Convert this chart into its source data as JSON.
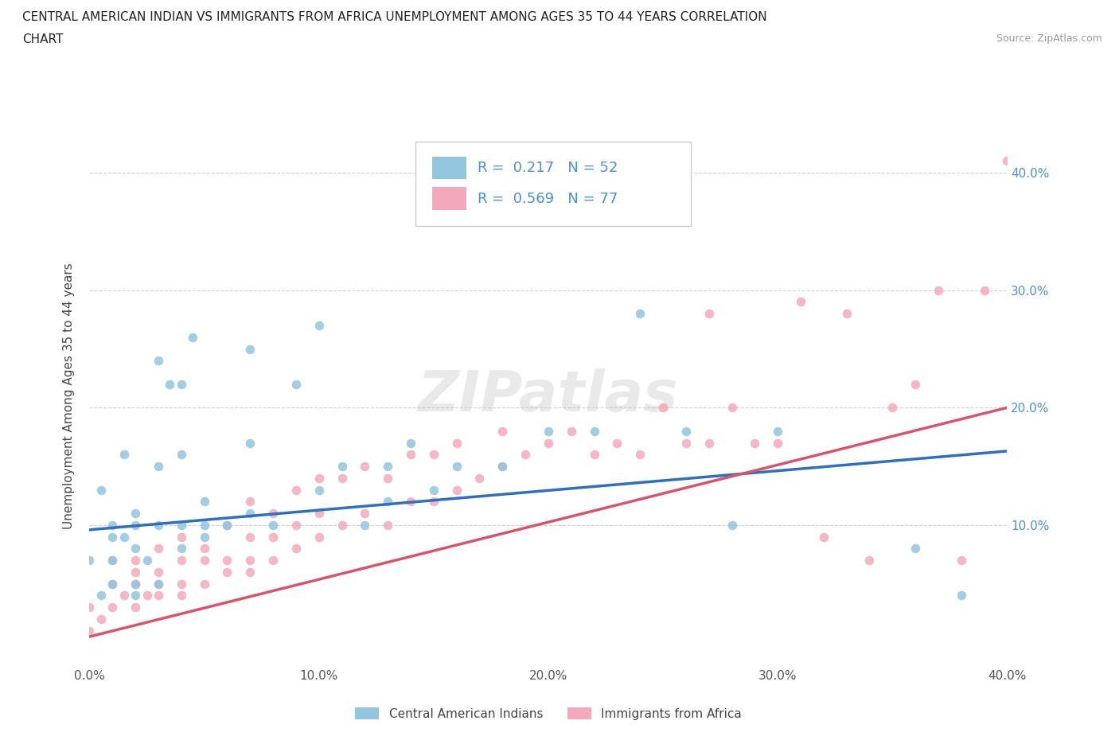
{
  "title_line1": "CENTRAL AMERICAN INDIAN VS IMMIGRANTS FROM AFRICA UNEMPLOYMENT AMONG AGES 35 TO 44 YEARS CORRELATION",
  "title_line2": "CHART",
  "source_text": "Source: ZipAtlas.com",
  "ylabel": "Unemployment Among Ages 35 to 44 years",
  "xlim": [
    0.0,
    0.4
  ],
  "ylim": [
    -0.02,
    0.44
  ],
  "xtick_labels": [
    "0.0%",
    "10.0%",
    "20.0%",
    "30.0%",
    "40.0%"
  ],
  "xtick_vals": [
    0.0,
    0.1,
    0.2,
    0.3,
    0.4
  ],
  "ytick_labels": [
    "10.0%",
    "20.0%",
    "30.0%",
    "40.0%"
  ],
  "ytick_vals": [
    0.1,
    0.2,
    0.3,
    0.4
  ],
  "color_blue": "#92C5DE",
  "color_pink": "#F4A9BB",
  "line_color_blue": "#2E6FBF",
  "line_color_pink": "#D9546A",
  "R_blue": 0.217,
  "N_blue": 52,
  "R_pink": 0.569,
  "N_pink": 77,
  "legend_label_blue": "Central American Indians",
  "legend_label_pink": "Immigrants from Africa",
  "legend_text_color": "#4A90D9",
  "watermark": "ZIPatlas",
  "blue_scatter_x": [
    0.0,
    0.005,
    0.01,
    0.01,
    0.01,
    0.015,
    0.015,
    0.02,
    0.02,
    0.02,
    0.02,
    0.02,
    0.025,
    0.03,
    0.03,
    0.03,
    0.03,
    0.035,
    0.04,
    0.04,
    0.04,
    0.04,
    0.045,
    0.05,
    0.05,
    0.05,
    0.06,
    0.07,
    0.07,
    0.07,
    0.08,
    0.09,
    0.1,
    0.1,
    0.11,
    0.12,
    0.13,
    0.13,
    0.14,
    0.15,
    0.16,
    0.18,
    0.2,
    0.22,
    0.24,
    0.26,
    0.28,
    0.3,
    0.36,
    0.38,
    0.005,
    0.01
  ],
  "blue_scatter_y": [
    0.07,
    0.04,
    0.05,
    0.07,
    0.1,
    0.09,
    0.16,
    0.04,
    0.05,
    0.08,
    0.1,
    0.11,
    0.07,
    0.05,
    0.1,
    0.15,
    0.24,
    0.22,
    0.08,
    0.1,
    0.22,
    0.16,
    0.26,
    0.09,
    0.1,
    0.12,
    0.1,
    0.11,
    0.17,
    0.25,
    0.1,
    0.22,
    0.13,
    0.27,
    0.15,
    0.1,
    0.12,
    0.15,
    0.17,
    0.13,
    0.15,
    0.15,
    0.18,
    0.18,
    0.28,
    0.18,
    0.1,
    0.18,
    0.08,
    0.04,
    0.13,
    0.09
  ],
  "pink_scatter_x": [
    0.0,
    0.0,
    0.005,
    0.01,
    0.01,
    0.01,
    0.015,
    0.02,
    0.02,
    0.02,
    0.02,
    0.025,
    0.03,
    0.03,
    0.03,
    0.03,
    0.04,
    0.04,
    0.04,
    0.04,
    0.05,
    0.05,
    0.05,
    0.06,
    0.06,
    0.06,
    0.07,
    0.07,
    0.07,
    0.07,
    0.08,
    0.08,
    0.08,
    0.09,
    0.09,
    0.09,
    0.1,
    0.1,
    0.1,
    0.11,
    0.11,
    0.12,
    0.12,
    0.13,
    0.13,
    0.14,
    0.14,
    0.15,
    0.15,
    0.16,
    0.16,
    0.17,
    0.18,
    0.18,
    0.19,
    0.2,
    0.21,
    0.22,
    0.23,
    0.24,
    0.25,
    0.26,
    0.27,
    0.28,
    0.29,
    0.3,
    0.31,
    0.32,
    0.33,
    0.34,
    0.35,
    0.36,
    0.37,
    0.38,
    0.27,
    0.39,
    0.4
  ],
  "pink_scatter_y": [
    0.01,
    0.03,
    0.02,
    0.03,
    0.05,
    0.07,
    0.04,
    0.03,
    0.05,
    0.06,
    0.07,
    0.04,
    0.04,
    0.06,
    0.08,
    0.05,
    0.04,
    0.07,
    0.09,
    0.05,
    0.05,
    0.07,
    0.08,
    0.06,
    0.07,
    0.1,
    0.06,
    0.07,
    0.09,
    0.12,
    0.07,
    0.09,
    0.11,
    0.08,
    0.1,
    0.13,
    0.09,
    0.11,
    0.14,
    0.1,
    0.14,
    0.11,
    0.15,
    0.1,
    0.14,
    0.12,
    0.16,
    0.12,
    0.16,
    0.13,
    0.17,
    0.14,
    0.15,
    0.18,
    0.16,
    0.17,
    0.18,
    0.16,
    0.17,
    0.16,
    0.2,
    0.17,
    0.17,
    0.2,
    0.17,
    0.17,
    0.29,
    0.09,
    0.28,
    0.07,
    0.2,
    0.22,
    0.3,
    0.07,
    0.28,
    0.3,
    0.41
  ],
  "blue_line_x0": 0.0,
  "blue_line_x1": 0.4,
  "blue_line_y0": 0.096,
  "blue_line_y1": 0.163,
  "pink_line_x0": 0.0,
  "pink_line_x1": 0.4,
  "pink_line_y0": 0.005,
  "pink_line_y1": 0.2
}
